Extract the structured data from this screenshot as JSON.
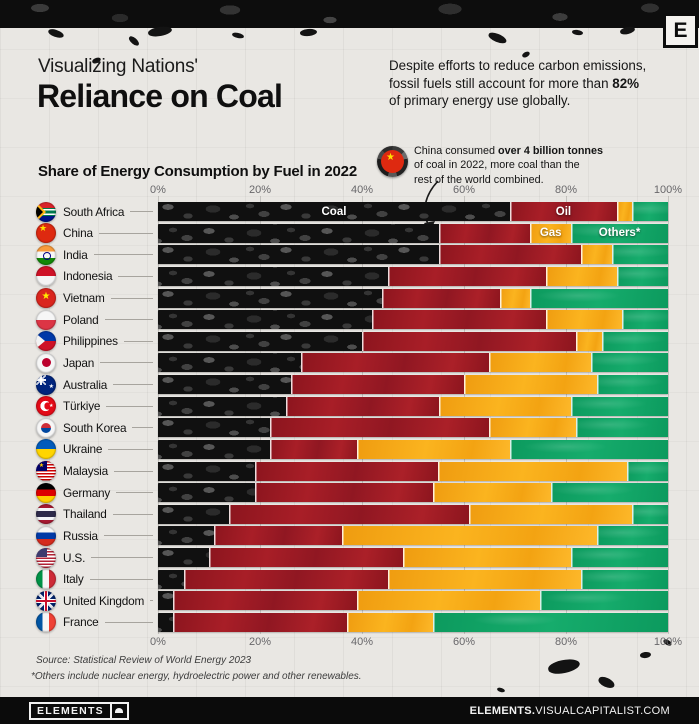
{
  "brand": {
    "logo_letter": "E",
    "footer_logo": "ELEMENTS",
    "footer_url_bold": "ELEMENTS.",
    "footer_url_rest": "VISUALCAPITALIST.COM"
  },
  "header": {
    "kicker": "Visualizing Nations'",
    "title": "Reliance on Coal",
    "intro_line1": "Despite efforts to reduce carbon emissions,",
    "intro_line2_pre": "fossil fuels still account for more than ",
    "intro_line2_bold": "82%",
    "intro_line3": "of primary energy use globally."
  },
  "annotation": {
    "line1_pre": "China consumed ",
    "line1_bold": "over 4 billion tonnes",
    "line2": "of coal in 2022, more coal than the",
    "line3": "rest of the world combined."
  },
  "footer": {
    "source": "Source: Statistical Review of World Energy 2023",
    "footnote": "*Others include nuclear energy, hydroelectric power and other renewables."
  },
  "chart_data": {
    "type": "bar",
    "stacked": true,
    "orientation": "horizontal",
    "title": "Share of Energy Consumption by Fuel in 2022",
    "unit": "% of primary energy consumption",
    "xlim": [
      0,
      100
    ],
    "x_ticks": [
      "0%",
      "20%",
      "40%",
      "60%",
      "80%",
      "100%"
    ],
    "grid": true,
    "series_order": [
      "coal",
      "oil",
      "gas",
      "others"
    ],
    "series_labels": {
      "coal": "Coal",
      "oil": "Oil",
      "gas": "Gas",
      "others": "Others*"
    },
    "colors": {
      "coal": "#141414",
      "oil": "#9e1b24",
      "gas": "#f7a81b",
      "others": "#11a365"
    },
    "categories": [
      "South Africa",
      "China",
      "India",
      "Indonesia",
      "Vietnam",
      "Poland",
      "Philippines",
      "Japan",
      "Australia",
      "Türkiye",
      "South Korea",
      "Ukraine",
      "Malaysia",
      "Germany",
      "Thailand",
      "Russia",
      "U.S.",
      "Italy",
      "United Kingdom",
      "France"
    ],
    "rows": [
      {
        "country": "South Africa",
        "flag": "south-africa",
        "coal": 69,
        "oil": 21,
        "gas": 3,
        "others": 7
      },
      {
        "country": "China",
        "flag": "china",
        "coal": 55,
        "oil": 18,
        "gas": 8,
        "others": 19
      },
      {
        "country": "India",
        "flag": "india",
        "coal": 55,
        "oil": 28,
        "gas": 6,
        "others": 11
      },
      {
        "country": "Indonesia",
        "flag": "indonesia",
        "coal": 45,
        "oil": 31,
        "gas": 14,
        "others": 10
      },
      {
        "country": "Vietnam",
        "flag": "vietnam",
        "coal": 44,
        "oil": 23,
        "gas": 6,
        "others": 27
      },
      {
        "country": "Poland",
        "flag": "poland",
        "coal": 42,
        "oil": 34,
        "gas": 15,
        "others": 9
      },
      {
        "country": "Philippines",
        "flag": "philippines",
        "coal": 40,
        "oil": 42,
        "gas": 5,
        "others": 13
      },
      {
        "country": "Japan",
        "flag": "japan",
        "coal": 28,
        "oil": 37,
        "gas": 20,
        "others": 15
      },
      {
        "country": "Australia",
        "flag": "australia",
        "coal": 26,
        "oil": 34,
        "gas": 26,
        "others": 14
      },
      {
        "country": "Türkiye",
        "flag": "turkiye",
        "coal": 25,
        "oil": 30,
        "gas": 26,
        "others": 19
      },
      {
        "country": "South Korea",
        "flag": "south-korea",
        "coal": 22,
        "oil": 43,
        "gas": 17,
        "others": 18
      },
      {
        "country": "Ukraine",
        "flag": "ukraine",
        "coal": 22,
        "oil": 17,
        "gas": 30,
        "others": 31
      },
      {
        "country": "Malaysia",
        "flag": "malaysia",
        "coal": 19,
        "oil": 36,
        "gas": 37,
        "others": 8
      },
      {
        "country": "Germany",
        "flag": "germany",
        "coal": 19,
        "oil": 35,
        "gas": 23,
        "others": 23
      },
      {
        "country": "Thailand",
        "flag": "thailand",
        "coal": 14,
        "oil": 47,
        "gas": 32,
        "others": 7
      },
      {
        "country": "Russia",
        "flag": "russia",
        "coal": 11,
        "oil": 25,
        "gas": 50,
        "others": 14
      },
      {
        "country": "U.S.",
        "flag": "us",
        "coal": 10,
        "oil": 38,
        "gas": 33,
        "others": 19
      },
      {
        "country": "Italy",
        "flag": "italy",
        "coal": 5,
        "oil": 40,
        "gas": 38,
        "others": 17
      },
      {
        "country": "United Kingdom",
        "flag": "uk",
        "coal": 3,
        "oil": 36,
        "gas": 36,
        "others": 25
      },
      {
        "country": "France",
        "flag": "france",
        "coal": 3,
        "oil": 34,
        "gas": 17,
        "others": 46
      }
    ],
    "segment_labels": [
      {
        "row": 0,
        "series": "coal",
        "label": "Coal"
      },
      {
        "row": 0,
        "series": "oil",
        "label": "Oil"
      },
      {
        "row": 1,
        "series": "gas",
        "label": "Gas"
      },
      {
        "row": 1,
        "series": "others",
        "label": "Others*"
      }
    ]
  }
}
